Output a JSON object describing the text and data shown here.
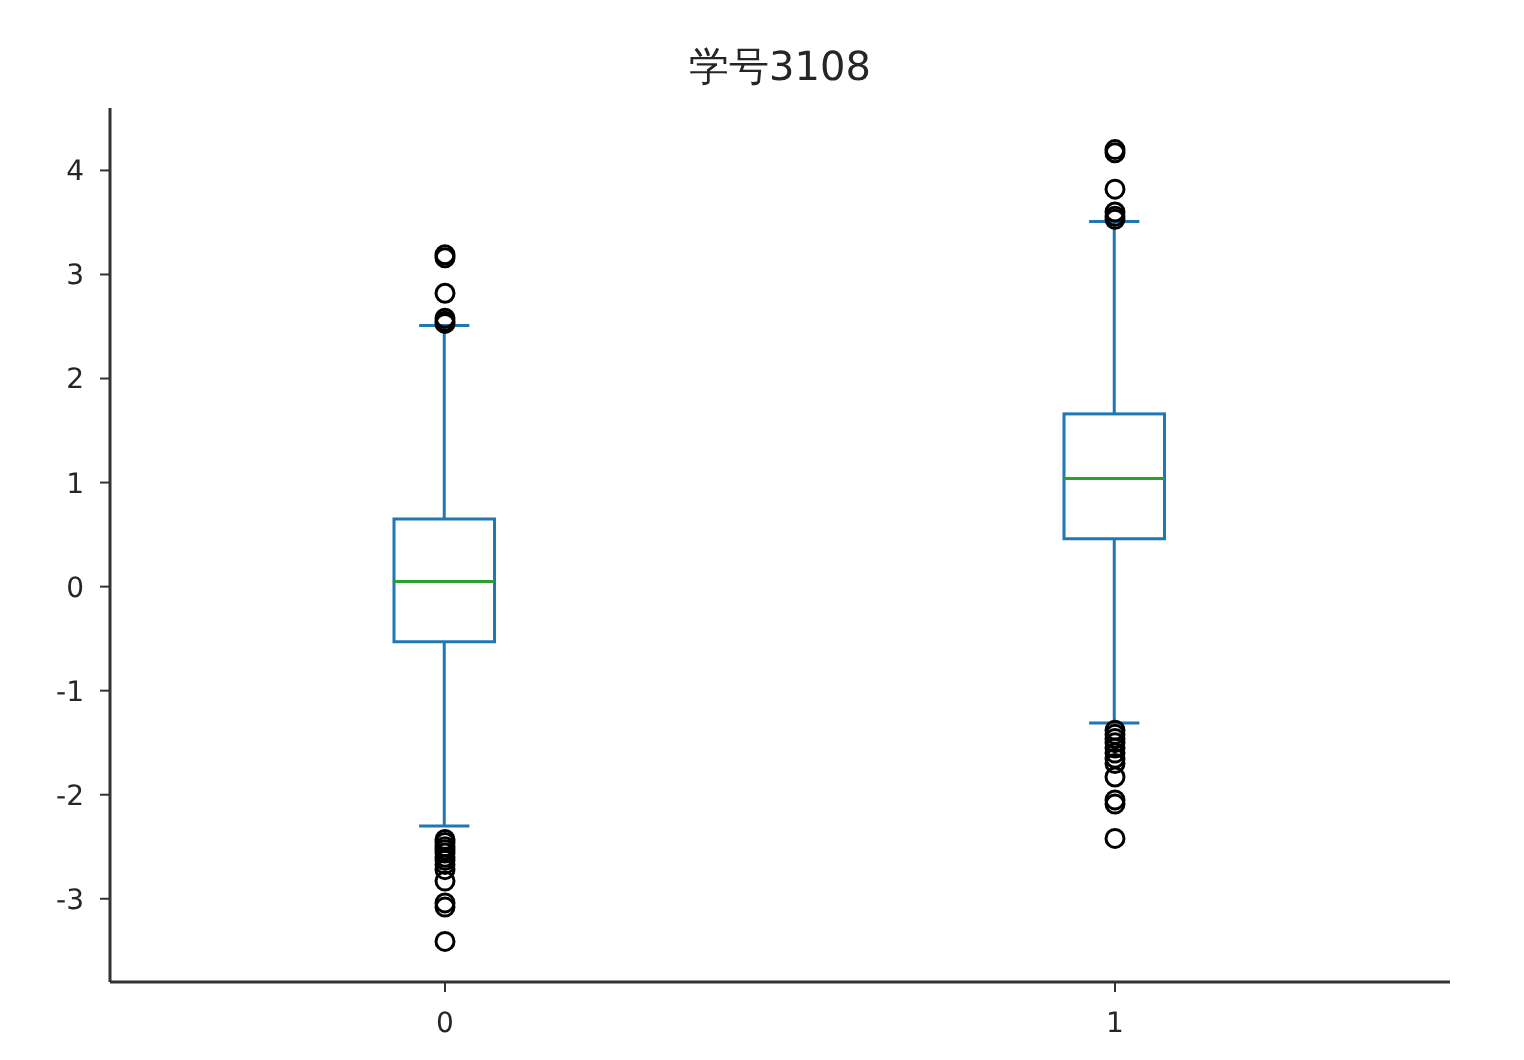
{
  "chart_data": {
    "type": "box",
    "title": "学号3108",
    "categories": [
      "0",
      "1"
    ],
    "color": "#1f77b4",
    "boxes": [
      {
        "low": -2.3,
        "q1": -0.53,
        "median": 0.05,
        "q3": 0.65,
        "high": 2.51,
        "outliers": [
          3.19,
          3.16,
          2.82,
          2.58,
          2.55,
          2.53,
          -2.43,
          -2.46,
          -2.5,
          -2.53,
          -2.56,
          -2.6,
          -2.63,
          -2.67,
          -2.72,
          -2.83,
          -3.04,
          -3.08,
          -3.41
        ]
      },
      {
        "low": -1.31,
        "q1": 0.46,
        "median": 1.04,
        "q3": 1.66,
        "high": 3.51,
        "outliers": [
          4.2,
          4.17,
          3.82,
          3.6,
          3.56,
          3.53,
          -1.38,
          -1.42,
          -1.46,
          -1.5,
          -1.55,
          -1.6,
          -1.65,
          -1.7,
          -1.83,
          -2.05,
          -2.09,
          -2.42
        ]
      }
    ],
    "ylim": [
      -3.8,
      4.6
    ],
    "yticks": [
      -3,
      -2,
      -1,
      0,
      1,
      2,
      3,
      4
    ]
  }
}
